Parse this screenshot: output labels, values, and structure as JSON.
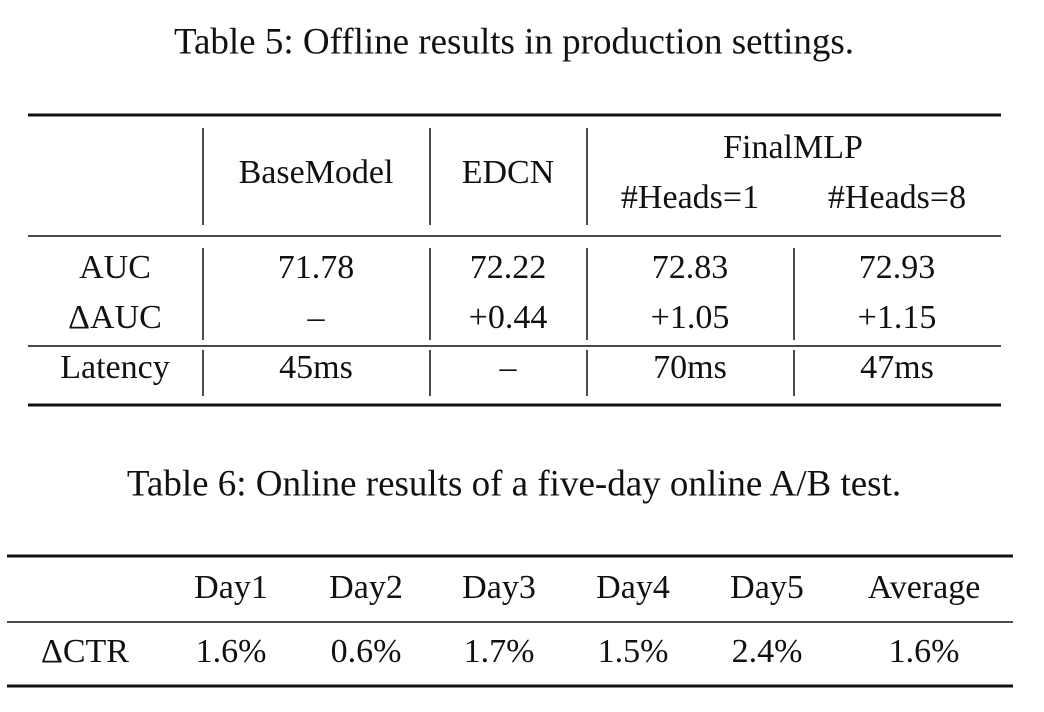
{
  "tables": [
    {
      "caption": "Table 5: Offline results in production settings.",
      "columns": [
        "BaseModel",
        "EDCN",
        "FinalMLP"
      ],
      "subcolumns": [
        "#Heads=1",
        "#Heads=8"
      ],
      "rows": [
        [
          "AUC",
          "71.78",
          "72.22",
          "72.83",
          "72.93"
        ],
        [
          "ΔAUC",
          "–",
          "+0.44",
          "+1.05",
          "+1.15"
        ],
        [
          "Latency",
          "45ms",
          "–",
          "70ms",
          "47ms"
        ]
      ]
    },
    {
      "caption": "Table 6: Online results of a five-day online A/B test.",
      "columns": [
        "Day1",
        "Day2",
        "Day3",
        "Day4",
        "Day5",
        "Average"
      ],
      "rows": [
        [
          "ΔCTR",
          "1.6%",
          "0.6%",
          "1.7%",
          "1.5%",
          "2.4%",
          "1.6%"
        ]
      ]
    }
  ]
}
